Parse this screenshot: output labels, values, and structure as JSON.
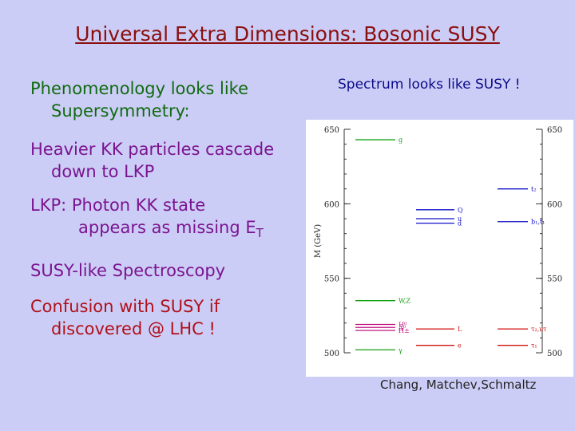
{
  "slide": {
    "title": "Universal Extra Dimensions: Bosonic SUSY",
    "bullets": {
      "b1_line1": "Phenomenology looks like",
      "b1_line2": "Supersymmetry:",
      "b2_line1": "Heavier KK particles cascade",
      "b2_line2": "down to LKP",
      "b3_line1": "LKP: Photon KK state",
      "b3_line2_pre": "appears as missing E",
      "b3_line2_sub": "T",
      "b4": "SUSY-like Spectroscopy",
      "b5_line1": "Confusion with SUSY if",
      "b5_line2": "discovered @ LHC !"
    },
    "spectrum_title": "Spectrum looks like SUSY !",
    "credit": "Chang, Matchev,Schmaltz"
  },
  "chart_data": {
    "type": "level_spectrum",
    "ylabel": "M (GeV)",
    "ylim": [
      500,
      650
    ],
    "ticks": [
      "500",
      "550",
      "600",
      "650"
    ],
    "colors": {
      "green": "#10a010",
      "blue": "#1010c8",
      "red": "#d01010",
      "axis": "#303030"
    },
    "levels": [
      {
        "label": "g",
        "mass": 643,
        "col": "left",
        "color": "green"
      },
      {
        "label": "W,Z",
        "mass": 535,
        "col": "left",
        "color": "green"
      },
      {
        "label": "H⁰",
        "mass": 519,
        "col": "left",
        "color": "purple"
      },
      {
        "label": "A⁰",
        "mass": 517,
        "col": "left",
        "color": "purple"
      },
      {
        "label": "H±",
        "mass": 515,
        "col": "left",
        "color": "purple"
      },
      {
        "label": "γ",
        "mass": 502,
        "col": "left",
        "color": "green"
      },
      {
        "label": "Q",
        "mass": 596,
        "col": "mid",
        "color": "blue"
      },
      {
        "label": "u",
        "mass": 590,
        "col": "mid",
        "color": "blue"
      },
      {
        "label": "d",
        "mass": 587,
        "col": "mid",
        "color": "blue"
      },
      {
        "label": "L",
        "mass": 516,
        "col": "mid",
        "color": "red"
      },
      {
        "label": "e",
        "mass": 505,
        "col": "mid",
        "color": "red"
      },
      {
        "label": "t₂",
        "mass": 610,
        "col": "right",
        "color": "blue"
      },
      {
        "label": "b₁,t₁",
        "mass": 588,
        "col": "right",
        "color": "blue"
      },
      {
        "label": "τ₂,ντ",
        "mass": 516,
        "col": "right",
        "color": "red"
      },
      {
        "label": "τ₁",
        "mass": 505,
        "col": "right",
        "color": "red"
      }
    ]
  }
}
